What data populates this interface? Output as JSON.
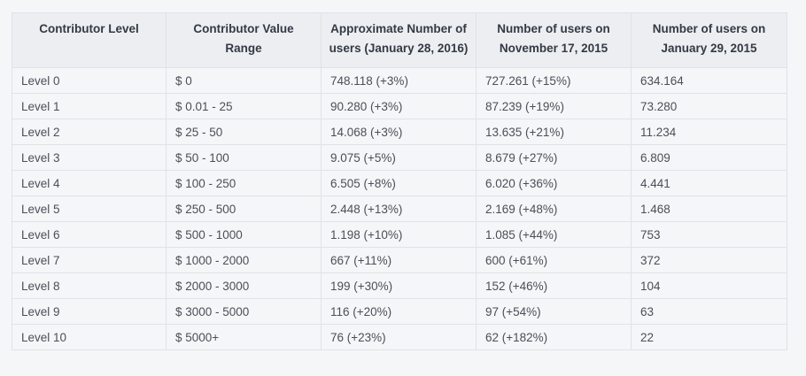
{
  "table": {
    "headers": [
      "Contributor Level",
      "Contributor Value Range",
      "Approximate Number of users (January 28, 2016)",
      "Number of users on November 17, 2015",
      "Number of users on January 29, 2015"
    ],
    "rows": [
      [
        "Level 0",
        "$ 0",
        "748.118 (+3%)",
        "727.261 (+15%)",
        "634.164"
      ],
      [
        "Level 1",
        "$ 0.01 - 25",
        "90.280 (+3%)",
        "87.239 (+19%)",
        "73.280"
      ],
      [
        "Level 2",
        "$ 25 - 50",
        "14.068 (+3%)",
        "13.635 (+21%)",
        "11.234"
      ],
      [
        "Level 3",
        "$ 50 - 100",
        "9.075 (+5%)",
        "8.679 (+27%)",
        "6.809"
      ],
      [
        "Level 4",
        "$ 100 - 250",
        "6.505 (+8%)",
        "6.020 (+36%)",
        "4.441"
      ],
      [
        "Level 5",
        "$ 250 - 500",
        "2.448 (+13%)",
        "2.169 (+48%)",
        "1.468"
      ],
      [
        "Level 6",
        "$ 500 - 1000",
        "1.198 (+10%)",
        "1.085 (+44%)",
        "753"
      ],
      [
        "Level 7",
        "$ 1000 - 2000",
        "667 (+11%)",
        "600 (+61%)",
        "372"
      ],
      [
        "Level 8",
        "$ 2000 - 3000",
        "199 (+30%)",
        "152 (+46%)",
        "104"
      ],
      [
        "Level 9",
        "$ 3000 - 5000",
        "116 (+20%)",
        "97 (+54%)",
        "63"
      ],
      [
        "Level 10",
        "$ 5000+",
        "76 (+23%)",
        "62 (+182%)",
        "22"
      ]
    ]
  }
}
